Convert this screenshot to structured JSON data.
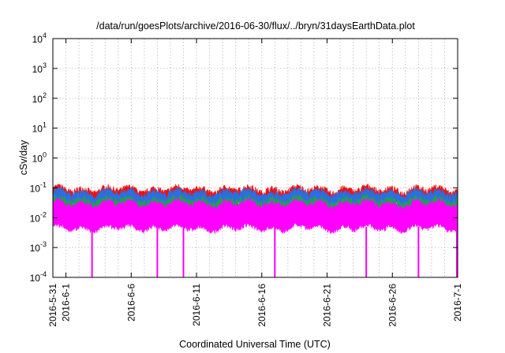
{
  "chart_data": {
    "type": "line",
    "title": "/data/run/goesPlots/archive/2016-06-30/flux/../bryn/31daysEarthData.plot",
    "xlabel": "Coordinated Universal Time (UTC)",
    "ylabel": "cSv/day",
    "yscale": "log",
    "ylim": [
      0.0001,
      10000
    ],
    "xlim": [
      "2016-05-31",
      "2016-07-01"
    ],
    "grid": true,
    "y_ticks": [
      {
        "value": 0.0001,
        "base": "10",
        "exp": "-4"
      },
      {
        "value": 0.001,
        "base": "10",
        "exp": "-3"
      },
      {
        "value": 0.01,
        "base": "10",
        "exp": "-2"
      },
      {
        "value": 0.1,
        "base": "10",
        "exp": "-1"
      },
      {
        "value": 1,
        "base": "10",
        "exp": "0"
      },
      {
        "value": 10,
        "base": "10",
        "exp": "1"
      },
      {
        "value": 100,
        "base": "10",
        "exp": "2"
      },
      {
        "value": 1000,
        "base": "10",
        "exp": "3"
      },
      {
        "value": 10000,
        "base": "10",
        "exp": "4"
      }
    ],
    "x_ticks": [
      {
        "date": "2016-05-31",
        "label": "2016-5-31"
      },
      {
        "date": "2016-06-01",
        "label": "2016-6-1"
      },
      {
        "date": "2016-06-06",
        "label": "2016-6-6"
      },
      {
        "date": "2016-06-11",
        "label": "2016-6-11"
      },
      {
        "date": "2016-06-16",
        "label": "2016-6-16"
      },
      {
        "date": "2016-06-21",
        "label": "2016-6-21"
      },
      {
        "date": "2016-06-26",
        "label": "2016-6-26"
      },
      {
        "date": "2016-07-01",
        "label": "2016-7-1"
      }
    ],
    "series": [
      {
        "color": "#ee1111",
        "typical_peak": 0.09,
        "typical_base": 0.045
      },
      {
        "color": "#2a6fe0",
        "typical_peak": 0.07,
        "typical_base": 0.035
      },
      {
        "color": "#22a050",
        "typical_peak": 0.04,
        "typical_base": 0.02
      },
      {
        "color": "#ff00ff",
        "typical_peak": 0.03,
        "typical_base": 0.005
      }
    ],
    "dropouts": [
      "2016-06-03",
      "2016-06-08",
      "2016-06-10",
      "2016-06-17",
      "2016-06-24",
      "2016-06-28",
      "2016-07-01"
    ]
  }
}
